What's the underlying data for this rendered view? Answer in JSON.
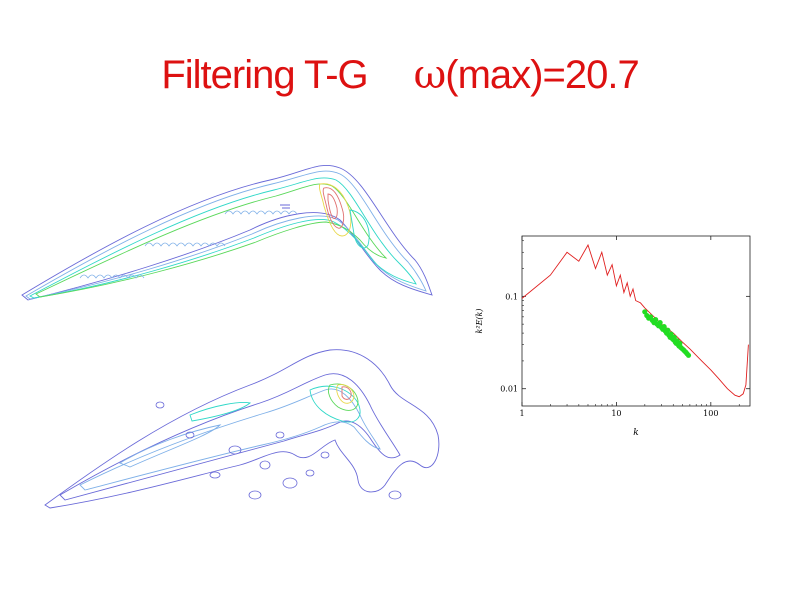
{
  "title": {
    "text": "Filtering T-G",
    "omega_symbol": "ω",
    "omega_text": "(max)=20.7"
  },
  "colors": {
    "title": "#dd1111",
    "spectrum_line": "#e02020",
    "spectrum_points": "#22dd22",
    "contour_levels": [
      "#6a6ad8",
      "#7fb0e8",
      "#30d8c8",
      "#5ad85a",
      "#e8d84a",
      "#e07070"
    ]
  },
  "contour_plots": [
    {
      "name": "vorticity-contours-unfiltered"
    },
    {
      "name": "vorticity-contours-filtered"
    }
  ],
  "chart_data": {
    "type": "line",
    "title": "",
    "xlabel": "k",
    "ylabel": "k²E(k)",
    "xscale": "log",
    "yscale": "log",
    "xlim": [
      1,
      260
    ],
    "ylim": [
      0.0065,
      0.45
    ],
    "grid": false,
    "x_ticks": [
      {
        "value": 1,
        "label": "1"
      },
      {
        "value": 10,
        "label": "10"
      },
      {
        "value": 100,
        "label": "100"
      }
    ],
    "y_ticks": [
      {
        "value": 0.1,
        "label": "0.1"
      },
      {
        "value": 0.01,
        "label": "0.01"
      }
    ],
    "series": [
      {
        "kind": "line",
        "color": "#e02020",
        "points": [
          [
            1,
            0.095
          ],
          [
            2,
            0.17
          ],
          [
            3,
            0.3
          ],
          [
            4,
            0.24
          ],
          [
            5,
            0.36
          ],
          [
            6,
            0.2
          ],
          [
            7,
            0.3
          ],
          [
            8,
            0.17
          ],
          [
            9,
            0.22
          ],
          [
            10,
            0.13
          ],
          [
            11,
            0.17
          ],
          [
            12,
            0.11
          ],
          [
            13,
            0.14
          ],
          [
            14,
            0.1
          ],
          [
            15,
            0.12
          ],
          [
            16,
            0.09
          ],
          [
            18,
            0.085
          ],
          [
            20,
            0.075
          ],
          [
            25,
            0.06
          ],
          [
            30,
            0.05
          ],
          [
            40,
            0.04
          ],
          [
            50,
            0.032
          ],
          [
            60,
            0.027
          ],
          [
            80,
            0.02
          ],
          [
            100,
            0.016
          ],
          [
            120,
            0.013
          ],
          [
            150,
            0.01
          ],
          [
            180,
            0.0085
          ],
          [
            200,
            0.0082
          ],
          [
            220,
            0.0088
          ],
          [
            235,
            0.011
          ],
          [
            250,
            0.03
          ]
        ]
      },
      {
        "kind": "scatter",
        "color": "#22dd22",
        "points": [
          [
            20,
            0.068
          ],
          [
            21,
            0.062
          ],
          [
            22,
            0.058
          ],
          [
            23,
            0.06
          ],
          [
            24,
            0.055
          ],
          [
            25,
            0.052
          ],
          [
            26,
            0.056
          ],
          [
            27,
            0.05
          ],
          [
            28,
            0.048
          ],
          [
            29,
            0.052
          ],
          [
            30,
            0.046
          ],
          [
            31,
            0.044
          ],
          [
            32,
            0.047
          ],
          [
            33,
            0.042
          ],
          [
            34,
            0.04
          ],
          [
            35,
            0.043
          ],
          [
            36,
            0.038
          ],
          [
            37,
            0.036
          ],
          [
            38,
            0.039
          ],
          [
            39,
            0.035
          ],
          [
            40,
            0.034
          ],
          [
            41,
            0.036
          ],
          [
            42,
            0.032
          ],
          [
            43,
            0.031
          ],
          [
            44,
            0.033
          ],
          [
            45,
            0.03
          ],
          [
            46,
            0.029
          ],
          [
            47,
            0.031
          ],
          [
            48,
            0.028
          ],
          [
            50,
            0.027
          ],
          [
            52,
            0.026
          ],
          [
            54,
            0.025
          ],
          [
            56,
            0.024
          ],
          [
            58,
            0.023
          ]
        ]
      }
    ]
  }
}
